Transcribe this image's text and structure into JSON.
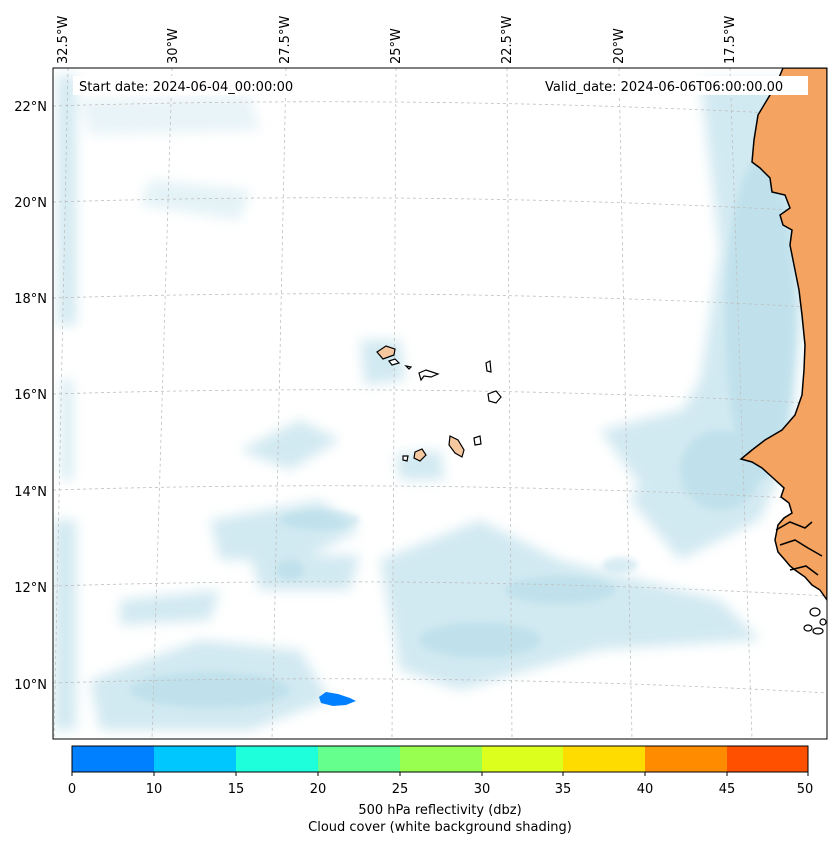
{
  "map": {
    "start_date": "Start date: 2024-06-04_00:00:00",
    "valid_date": "Valid_date: 2024-06-06T06:00:00.00",
    "lon_labels": [
      "32.5°W",
      "30°W",
      "27.5°W",
      "25°W",
      "22.5°W",
      "20°W",
      "17.5°W"
    ],
    "lat_labels": [
      "22°N",
      "20°N",
      "18°N",
      "16°N",
      "14°N",
      "12°N",
      "10°N"
    ],
    "lon_range": [
      -32.5,
      -16.0
    ],
    "lat_range": [
      8.9,
      22.7
    ],
    "land_color": "#f4a460",
    "cloud_color": "#add8e6",
    "echo_color": "#0080ff"
  },
  "colorbar": {
    "ticks": [
      "0",
      "10",
      "15",
      "20",
      "25",
      "30",
      "35",
      "40",
      "45",
      "50"
    ],
    "colors": [
      "#0080ff",
      "#00c8ff",
      "#1effdc",
      "#64ff8c",
      "#98ff50",
      "#dcff1e",
      "#ffdc00",
      "#ff8c00",
      "#ff5000"
    ],
    "label_line1": "500 hPa reflectivity (dbz)",
    "label_line2": "Cloud cover (white background shading)"
  }
}
